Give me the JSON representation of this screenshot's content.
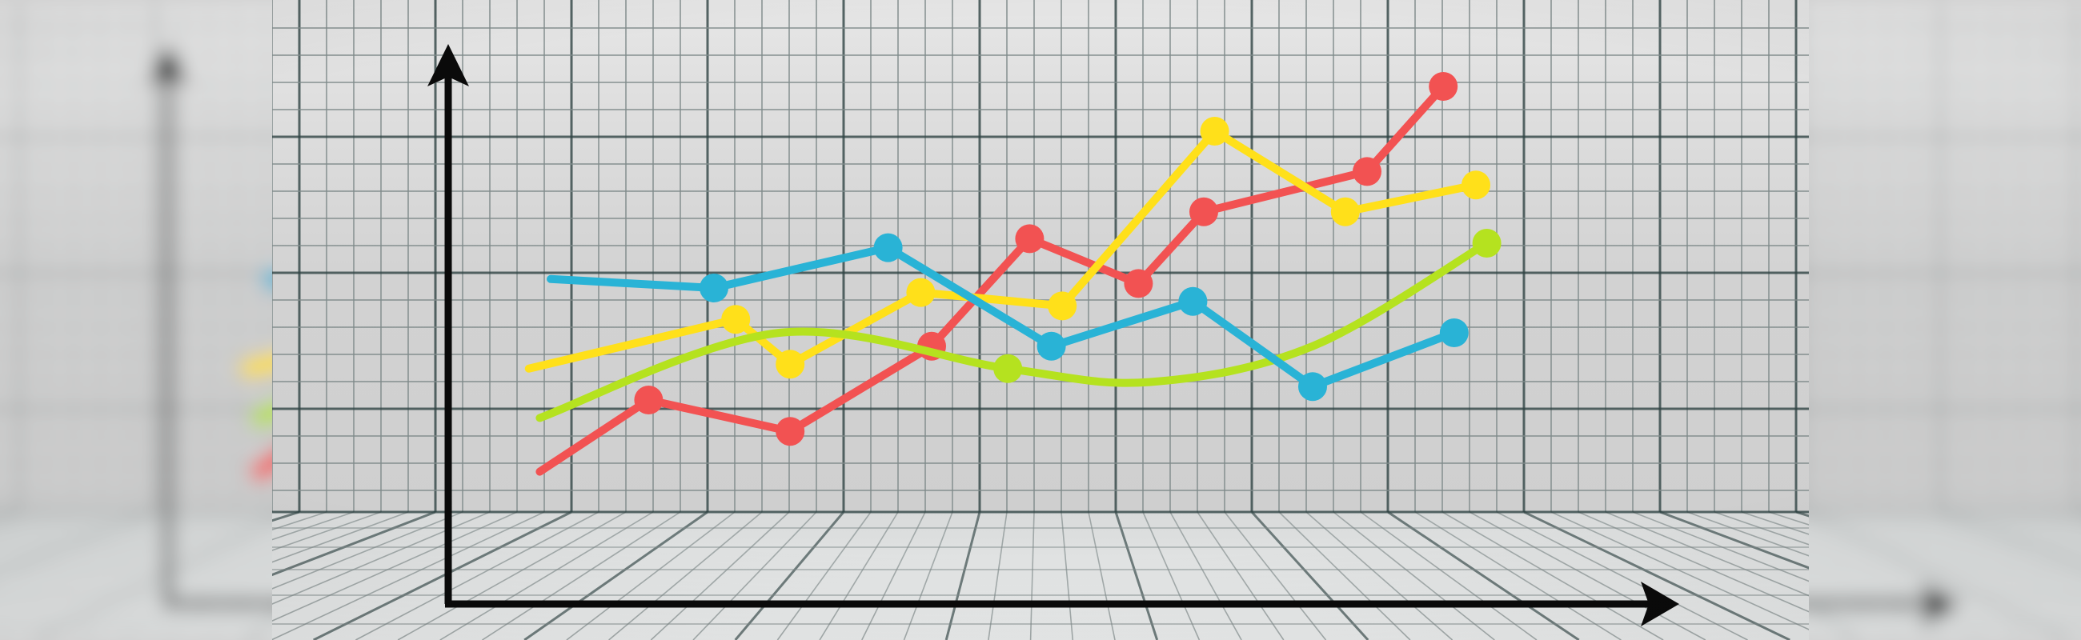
{
  "chart_data": {
    "type": "line",
    "title": "",
    "xlabel": "",
    "ylabel": "",
    "xlim": [
      0,
      100
    ],
    "ylim": [
      0,
      100
    ],
    "grid": true,
    "legend": "none",
    "series": [
      {
        "color": "#f25252",
        "marker": "circle",
        "smooth": false,
        "points": [
          {
            "x": 4,
            "y": 9,
            "marker": false
          },
          {
            "x": 14,
            "y": 25
          },
          {
            "x": 27,
            "y": 18
          },
          {
            "x": 40,
            "y": 37
          },
          {
            "x": 49,
            "y": 61
          },
          {
            "x": 59,
            "y": 51
          },
          {
            "x": 65,
            "y": 67
          },
          {
            "x": 80,
            "y": 76
          },
          {
            "x": 87,
            "y": 95
          }
        ]
      },
      {
        "color": "#ffe01a",
        "marker": "circle",
        "smooth": false,
        "points": [
          {
            "x": 3,
            "y": 32,
            "marker": false
          },
          {
            "x": 22,
            "y": 43
          },
          {
            "x": 27,
            "y": 33
          },
          {
            "x": 39,
            "y": 49
          },
          {
            "x": 52,
            "y": 46
          },
          {
            "x": 66,
            "y": 85
          },
          {
            "x": 78,
            "y": 67
          },
          {
            "x": 90,
            "y": 73
          }
        ]
      },
      {
        "color": "#b5e21f",
        "marker": "circle",
        "smooth": true,
        "points": [
          {
            "x": 4,
            "y": 21,
            "marker": false
          },
          {
            "x": 26,
            "y": 40,
            "marker": false
          },
          {
            "x": 47,
            "y": 32
          },
          {
            "x": 60,
            "y": 29,
            "marker": false
          },
          {
            "x": 75,
            "y": 37,
            "marker": false
          },
          {
            "x": 91,
            "y": 60
          }
        ]
      },
      {
        "color": "#29b3d6",
        "marker": "circle",
        "smooth": false,
        "points": [
          {
            "x": 5,
            "y": 52,
            "marker": false
          },
          {
            "x": 20,
            "y": 50
          },
          {
            "x": 36,
            "y": 59
          },
          {
            "x": 51,
            "y": 37
          },
          {
            "x": 64,
            "y": 47
          },
          {
            "x": 75,
            "y": 28
          },
          {
            "x": 88,
            "y": 40
          }
        ]
      }
    ]
  },
  "colors": {
    "wall": "#d9d9d9",
    "grid_minor": "#7f8a8a",
    "grid_major": "#2f4444",
    "axis": "#0a0a0a",
    "floor": "#e6e8e8"
  }
}
